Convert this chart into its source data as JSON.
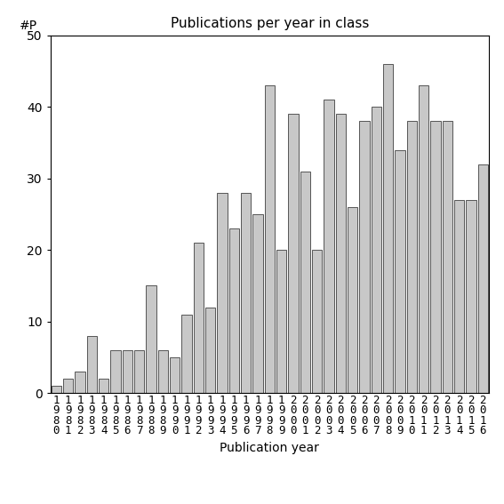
{
  "title": "Publications per year in class",
  "xlabel": "Publication year",
  "ylabel": "#P",
  "ylim": [
    0,
    50
  ],
  "yticks": [
    0,
    10,
    20,
    30,
    40,
    50
  ],
  "bar_color": "#c8c8c8",
  "bar_edgecolor": "#555555",
  "bar_linewidth": 0.7,
  "categories": [
    "1\n9\n8\n0",
    "1\n9\n8\n1",
    "1\n9\n8\n2",
    "1\n9\n8\n3",
    "1\n9\n8\n4",
    "1\n9\n8\n5",
    "1\n9\n8\n6",
    "1\n9\n8\n7",
    "1\n9\n8\n8",
    "1\n9\n8\n9",
    "1\n9\n9\n0",
    "1\n9\n9\n1",
    "1\n9\n9\n2",
    "1\n9\n9\n3",
    "1\n9\n9\n4",
    "1\n9\n9\n5",
    "1\n9\n9\n6",
    "1\n9\n9\n7",
    "1\n9\n9\n8",
    "1\n9\n9\n9",
    "2\n0\n0\n0",
    "2\n0\n0\n1",
    "2\n0\n0\n2",
    "2\n0\n0\n3",
    "2\n0\n0\n4",
    "2\n0\n0\n5",
    "2\n0\n0\n6",
    "2\n0\n0\n7",
    "2\n0\n0\n8",
    "2\n0\n0\n9",
    "2\n0\n1\n0",
    "2\n0\n1\n1",
    "2\n0\n1\n2",
    "2\n0\n1\n3",
    "2\n0\n1\n4",
    "2\n0\n1\n5",
    "2\n0\n1\n6"
  ],
  "values": [
    1,
    2,
    3,
    8,
    2,
    6,
    6,
    6,
    15,
    6,
    5,
    11,
    21,
    12,
    28,
    23,
    28,
    25,
    43,
    20,
    39,
    31,
    20,
    41,
    39,
    26,
    38,
    40,
    46,
    34,
    38,
    43,
    38,
    38,
    27,
    27,
    32
  ],
  "tick_fontsize": 9,
  "title_fontsize": 11,
  "label_fontsize": 10
}
